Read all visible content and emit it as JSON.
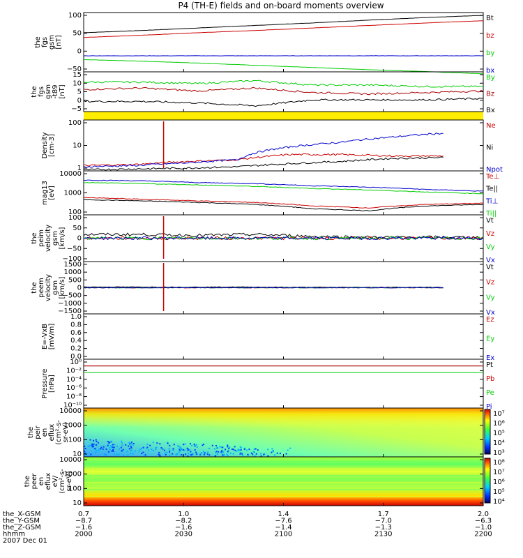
{
  "title": "P4 (TH-E) fields and on-board moments overview",
  "colors": {
    "black": "#000000",
    "red": "#cc0000",
    "green": "#00cc00",
    "blue": "#0000cc",
    "yellow": "#ffee00",
    "dkred": "#aa0000"
  },
  "chart_data": [
    {
      "type": "line",
      "id": "fgs",
      "ylabel": [
        "the",
        "fgs",
        "gsm",
        "[nT]"
      ],
      "ticks": [
        "100",
        "50",
        "0",
        "−50"
      ],
      "series": [
        {
          "name": "Bt",
          "color": "black",
          "values": [
            55,
            62,
            70,
            78,
            86,
            95,
            103,
            110
          ]
        },
        {
          "name": "bz",
          "color": "red",
          "values": [
            40,
            47,
            55,
            62,
            70,
            78,
            86,
            93
          ]
        },
        {
          "name": "by",
          "color": "green",
          "values": [
            -30,
            -35,
            -41,
            -48,
            -55,
            -62,
            -68,
            -75
          ]
        },
        {
          "name": "bx",
          "color": "blue",
          "values": [
            -18,
            -18,
            -18,
            -18,
            -18,
            -18,
            -18,
            -18
          ]
        }
      ]
    },
    {
      "type": "line",
      "id": "fgm",
      "ylabel": [
        "the",
        "fgs",
        "gsm",
        "-t89",
        "[nT]"
      ],
      "ticks": [
        "15",
        "10",
        "5",
        "0",
        "−5"
      ],
      "series": [
        {
          "name": "By",
          "color": "green",
          "values": [
            11,
            11,
            10,
            12,
            9,
            9,
            8,
            8
          ]
        },
        {
          "name": "Bz",
          "color": "dkred",
          "values": [
            6,
            7,
            5,
            7,
            4,
            3,
            4,
            5
          ]
        },
        {
          "name": "Bx",
          "color": "black",
          "values": [
            -2,
            -2,
            -3,
            -5,
            -1,
            -1,
            -1,
            0
          ]
        }
      ]
    },
    {
      "type": "line",
      "id": "density",
      "ylabel": [
        "Density",
        "[cm-3]"
      ],
      "ticks": [
        "100",
        "10",
        "1"
      ],
      "series": [
        {
          "name": "Ne",
          "color": "red",
          "values": [
            0.7,
            0.8,
            1.2,
            1.5,
            3,
            3,
            2.5,
            2.5
          ]
        },
        {
          "name": "Ni",
          "color": "black",
          "values": [
            0.4,
            0.45,
            0.5,
            0.6,
            0.9,
            1.2,
            1.8,
            2
          ]
        },
        {
          "name": "Npot",
          "color": "blue",
          "values": [
            0.6,
            0.7,
            1,
            1.5,
            8,
            15,
            30,
            50
          ]
        }
      ]
    },
    {
      "type": "line",
      "id": "temp",
      "ylabel": [
        "mag13",
        "[eV]"
      ],
      "ticks": [
        "10000",
        "1000",
        "100"
      ],
      "series": [
        {
          "name": "Te⊥",
          "color": "red",
          "values": [
            400,
            320,
            250,
            200,
            120,
            90,
            150,
            180
          ]
        },
        {
          "name": "Te||",
          "color": "black",
          "values": [
            300,
            250,
            200,
            150,
            80,
            60,
            120,
            150
          ]
        },
        {
          "name": "Ti⊥",
          "color": "blue",
          "values": [
            5000,
            4500,
            3500,
            3000,
            2200,
            1800,
            1300,
            1000
          ]
        },
        {
          "name": "Ti||",
          "color": "green",
          "values": [
            3500,
            3000,
            2500,
            2000,
            1500,
            1200,
            900,
            700
          ]
        }
      ]
    },
    {
      "type": "line",
      "id": "peim",
      "ylabel": [
        "the",
        "peim",
        "velocity",
        "gsm",
        "[km/s]"
      ],
      "ticks": [
        "100",
        "50",
        "0",
        "−50",
        "−100"
      ],
      "series": [
        {
          "name": "Vt",
          "color": "black",
          "values": [
            20,
            20,
            15,
            20,
            10,
            5,
            5,
            5
          ]
        },
        {
          "name": "Vz",
          "color": "red",
          "values": [
            0,
            0,
            0,
            0,
            0,
            0,
            0,
            0
          ]
        },
        {
          "name": "Vy",
          "color": "green",
          "values": [
            0,
            0,
            0,
            0,
            0,
            0,
            0,
            0
          ]
        },
        {
          "name": "Vx",
          "color": "blue",
          "values": [
            0,
            0,
            0,
            0,
            0,
            0,
            0,
            0
          ]
        }
      ]
    },
    {
      "type": "line",
      "id": "peem",
      "ylabel": [
        "the",
        "peem",
        "velocity",
        "gsm",
        "[km/s]"
      ],
      "ticks": [
        "1500",
        "1000",
        "500",
        "0",
        "−500",
        "−1000",
        "−1500"
      ],
      "series": [
        {
          "name": "Vt",
          "color": "black",
          "values": [
            50,
            50,
            40,
            50,
            30,
            30,
            30,
            30
          ]
        },
        {
          "name": "Vz",
          "color": "red",
          "values": [
            0,
            0,
            0,
            0,
            0,
            0,
            0,
            0
          ]
        },
        {
          "name": "Vy",
          "color": "green",
          "values": [
            0,
            0,
            0,
            0,
            0,
            0,
            0,
            0
          ]
        },
        {
          "name": "Vx",
          "color": "blue",
          "values": [
            0,
            0,
            0,
            0,
            0,
            0,
            0,
            0
          ]
        }
      ]
    },
    {
      "type": "line",
      "id": "efield",
      "ylabel": [
        "E=-VxB",
        "[mV/m]"
      ],
      "ticks": [
        "1.0",
        "0.8",
        "0.6",
        "0.4",
        "0.2",
        "0.0"
      ],
      "series": [
        {
          "name": "Ez",
          "color": "red",
          "values": []
        },
        {
          "name": "Ey",
          "color": "green",
          "values": []
        },
        {
          "name": "Ex",
          "color": "blue",
          "values": []
        }
      ]
    },
    {
      "type": "line",
      "id": "pressure",
      "ylabel": [
        "Pressure",
        "[nPa]"
      ],
      "ticks": [
        "10⁰",
        "10⁻²",
        "10⁻⁴",
        "10⁻⁶",
        "10⁻⁸",
        "10⁻¹⁰"
      ],
      "series": [
        {
          "name": "Pt",
          "color": "black",
          "values": [
            1,
            1,
            1,
            1,
            1,
            1,
            1,
            1
          ]
        },
        {
          "name": "Pb",
          "color": "red",
          "values": [
            1,
            1,
            1,
            1,
            1,
            1,
            1,
            1
          ]
        },
        {
          "name": "Pe",
          "color": "green",
          "values": [
            0.02,
            0.02,
            0.02,
            0.02,
            0.02,
            0.02,
            0.02,
            0.02
          ]
        },
        {
          "name": "Pi",
          "color": "blue",
          "values": []
        }
      ]
    },
    {
      "type": "heatmap",
      "id": "peir",
      "ylabel": [
        "the",
        "peir",
        "en",
        "eflux",
        "(cm²-s-",
        "sr-eV)"
      ],
      "ticks": [
        "10000",
        "1000",
        "100",
        "10"
      ],
      "colorbar": [
        "10⁷",
        "10⁶",
        "10⁵",
        "10⁴",
        "10³"
      ]
    },
    {
      "type": "heatmap",
      "id": "peer",
      "ylabel": [
        "the",
        "peer",
        "en",
        "eflux",
        "eV/",
        "(cm²-s-",
        "sr-eV)"
      ],
      "ticks": [
        "10000",
        "1000",
        "100",
        "10"
      ],
      "colorbar": [
        "10⁸",
        "10⁷",
        "10⁶",
        "10⁵",
        "10⁴"
      ]
    }
  ],
  "xaxis": {
    "rows": [
      {
        "label": "the_X-GSM",
        "values": [
          "0.7",
          "1.0",
          "1.4",
          "1.7",
          "2.0"
        ]
      },
      {
        "label": "the_Y-GSM",
        "values": [
          "−8.7",
          "−8.2",
          "−7.6",
          "−7.0",
          "−6.3"
        ]
      },
      {
        "label": "the_Z-GSM",
        "values": [
          "−1.6",
          "−1.6",
          "−1.4",
          "−1.3",
          "−1.0"
        ]
      },
      {
        "label": "hhmm",
        "values": [
          "2000",
          "2030",
          "2100",
          "2130",
          "2200"
        ]
      }
    ],
    "date": "2007 Dec 01"
  }
}
